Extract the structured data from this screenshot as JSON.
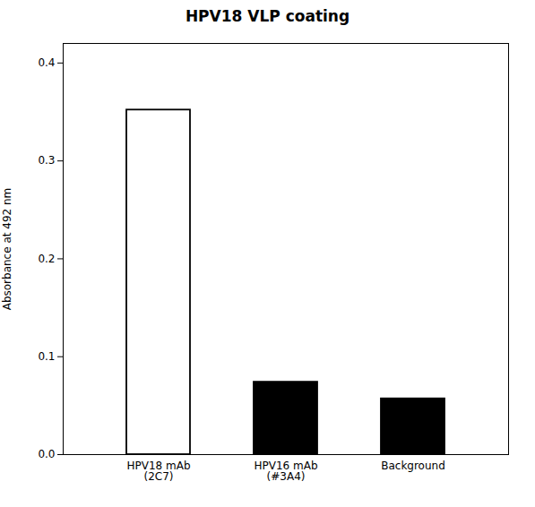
{
  "chart_data": {
    "type": "bar",
    "title": "HPV18 VLP coating",
    "categories": [
      "HPV18 mAb\n(2C7)",
      "HPV16 mAb\n(#3A4)",
      "Background"
    ],
    "values": [
      0.352,
      0.074,
      0.057
    ],
    "colors": [
      "#ffffff",
      "#000000",
      "#000000"
    ],
    "ylabel": "Absorbance at 492 nm",
    "ylim": [
      0,
      0.42
    ],
    "yticks": [
      {
        "value": 0,
        "label": "0.0"
      },
      0.1,
      0.2,
      0.3,
      0.4
    ],
    "grid": false
  }
}
